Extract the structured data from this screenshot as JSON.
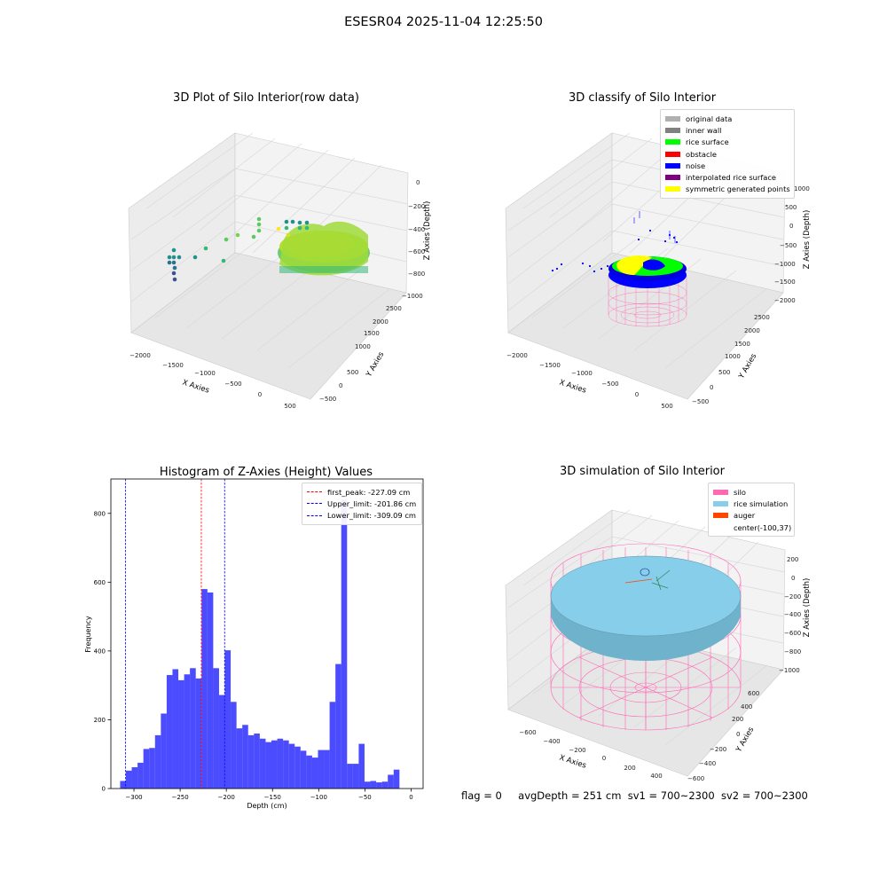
{
  "figure_title": "ESESR04 2025-11-04 12:25:50",
  "footer": {
    "flag": "flag = 0",
    "avg_depth": "avgDepth = 251 cm",
    "sv1": "sv1 = 700~2300",
    "sv2": "sv2 = 700~2300"
  },
  "colors": {
    "silo": "#ff69b4",
    "rice_simulation": "#87ceeb",
    "auger": "#ff4500",
    "histogram": "#0000ff",
    "first_peak_line": "#ff0000",
    "limit_lines": "#0000ff"
  },
  "chart_data": [
    {
      "type": "scatter",
      "subtype": "3d",
      "title": "3D Plot of Silo Interior(row data)",
      "xlabel": "X Axies",
      "ylabel": "Y Axies",
      "zlabel": "Z Axies (Depth)",
      "xticks": [
        "−2000",
        "−1500",
        "−1000",
        "−500",
        "0",
        "500"
      ],
      "yticks": [
        "−500",
        "0",
        "500",
        "1000",
        "1500",
        "2000",
        "2500"
      ],
      "zticks": [
        "0",
        "−200",
        "−400",
        "−600",
        "−800",
        "−1000"
      ],
      "colormap": "viridis"
    },
    {
      "type": "scatter",
      "subtype": "3d",
      "title": "3D classify of Silo Interior",
      "xlabel": "X Axies",
      "ylabel": "Y Axies",
      "zlabel": "Z Axies (Depth)",
      "xticks": [
        "−2000",
        "−1500",
        "−1000",
        "−500",
        "0",
        "500"
      ],
      "yticks": [
        "−500",
        "0",
        "500",
        "1000",
        "1500",
        "2000",
        "2500"
      ],
      "zticks": [
        "1000",
        "500",
        "0",
        "−500",
        "−1000",
        "−1500",
        "−2000"
      ],
      "legend": [
        {
          "label": "original data",
          "color": "#b0b0b0"
        },
        {
          "label": "inner wall",
          "color": "#808080"
        },
        {
          "label": "rice surface",
          "color": "#00ff00"
        },
        {
          "label": "obstacle",
          "color": "#ff0000"
        },
        {
          "label": "noise",
          "color": "#0000ff"
        },
        {
          "label": "interpolated rice surface",
          "color": "#800080"
        },
        {
          "label": "symmetric generated points",
          "color": "#ffff00"
        }
      ],
      "legend_position": "upper-right"
    },
    {
      "type": "bar",
      "subtype": "histogram",
      "title": "Histogram of Z-Axies (Height) Values",
      "xlabel": "Depth (cm)",
      "ylabel": "Frequency",
      "xlim": [
        -325,
        13
      ],
      "ylim": [
        0,
        900
      ],
      "xticks": [
        -300,
        -250,
        -200,
        -150,
        -100,
        -50,
        0
      ],
      "yticks": [
        0,
        200,
        400,
        600,
        800
      ],
      "bin_start": -315,
      "bin_width": 6.3,
      "values": [
        22,
        52,
        62,
        75,
        115,
        118,
        155,
        218,
        330,
        347,
        315,
        332,
        350,
        320,
        580,
        570,
        350,
        272,
        402,
        252,
        175,
        185,
        155,
        160,
        145,
        135,
        140,
        145,
        140,
        130,
        122,
        110,
        96,
        90,
        112,
        112,
        252,
        362,
        840,
        72,
        72,
        130,
        20,
        22,
        18,
        20,
        40,
        55
      ],
      "vlines": [
        {
          "label": "first_peak: -227.09 cm",
          "value": -227.09,
          "color": "#ff0000"
        },
        {
          "label": "Upper_limit: -201.86 cm",
          "value": -201.86,
          "color": "#0000ff"
        },
        {
          "label": "Lower_limit: -309.09 cm",
          "value": -309.09,
          "color": "#0000ff"
        }
      ],
      "legend_position": "upper-right"
    },
    {
      "type": "scatter",
      "subtype": "3d",
      "title": "3D simulation of Silo Interior",
      "xlabel": "X Axies",
      "ylabel": "Y Axies",
      "zlabel": "Z Axies (Depth)",
      "xticks": [
        "−600",
        "−400",
        "−200",
        "0",
        "200",
        "400"
      ],
      "yticks": [
        "−600",
        "−400",
        "−200",
        "0",
        "200",
        "400",
        "600"
      ],
      "zticks": [
        "200",
        "0",
        "−200",
        "−400",
        "−600",
        "−800",
        "−1000"
      ],
      "legend": [
        {
          "label": "silo",
          "color": "#ff69b4"
        },
        {
          "label": "rice simulation",
          "color": "#87ceeb"
        },
        {
          "label": "auger",
          "color": "#ff4500"
        },
        {
          "label": "center(-100,37)",
          "color": "none"
        }
      ],
      "legend_position": "upper-right"
    }
  ]
}
